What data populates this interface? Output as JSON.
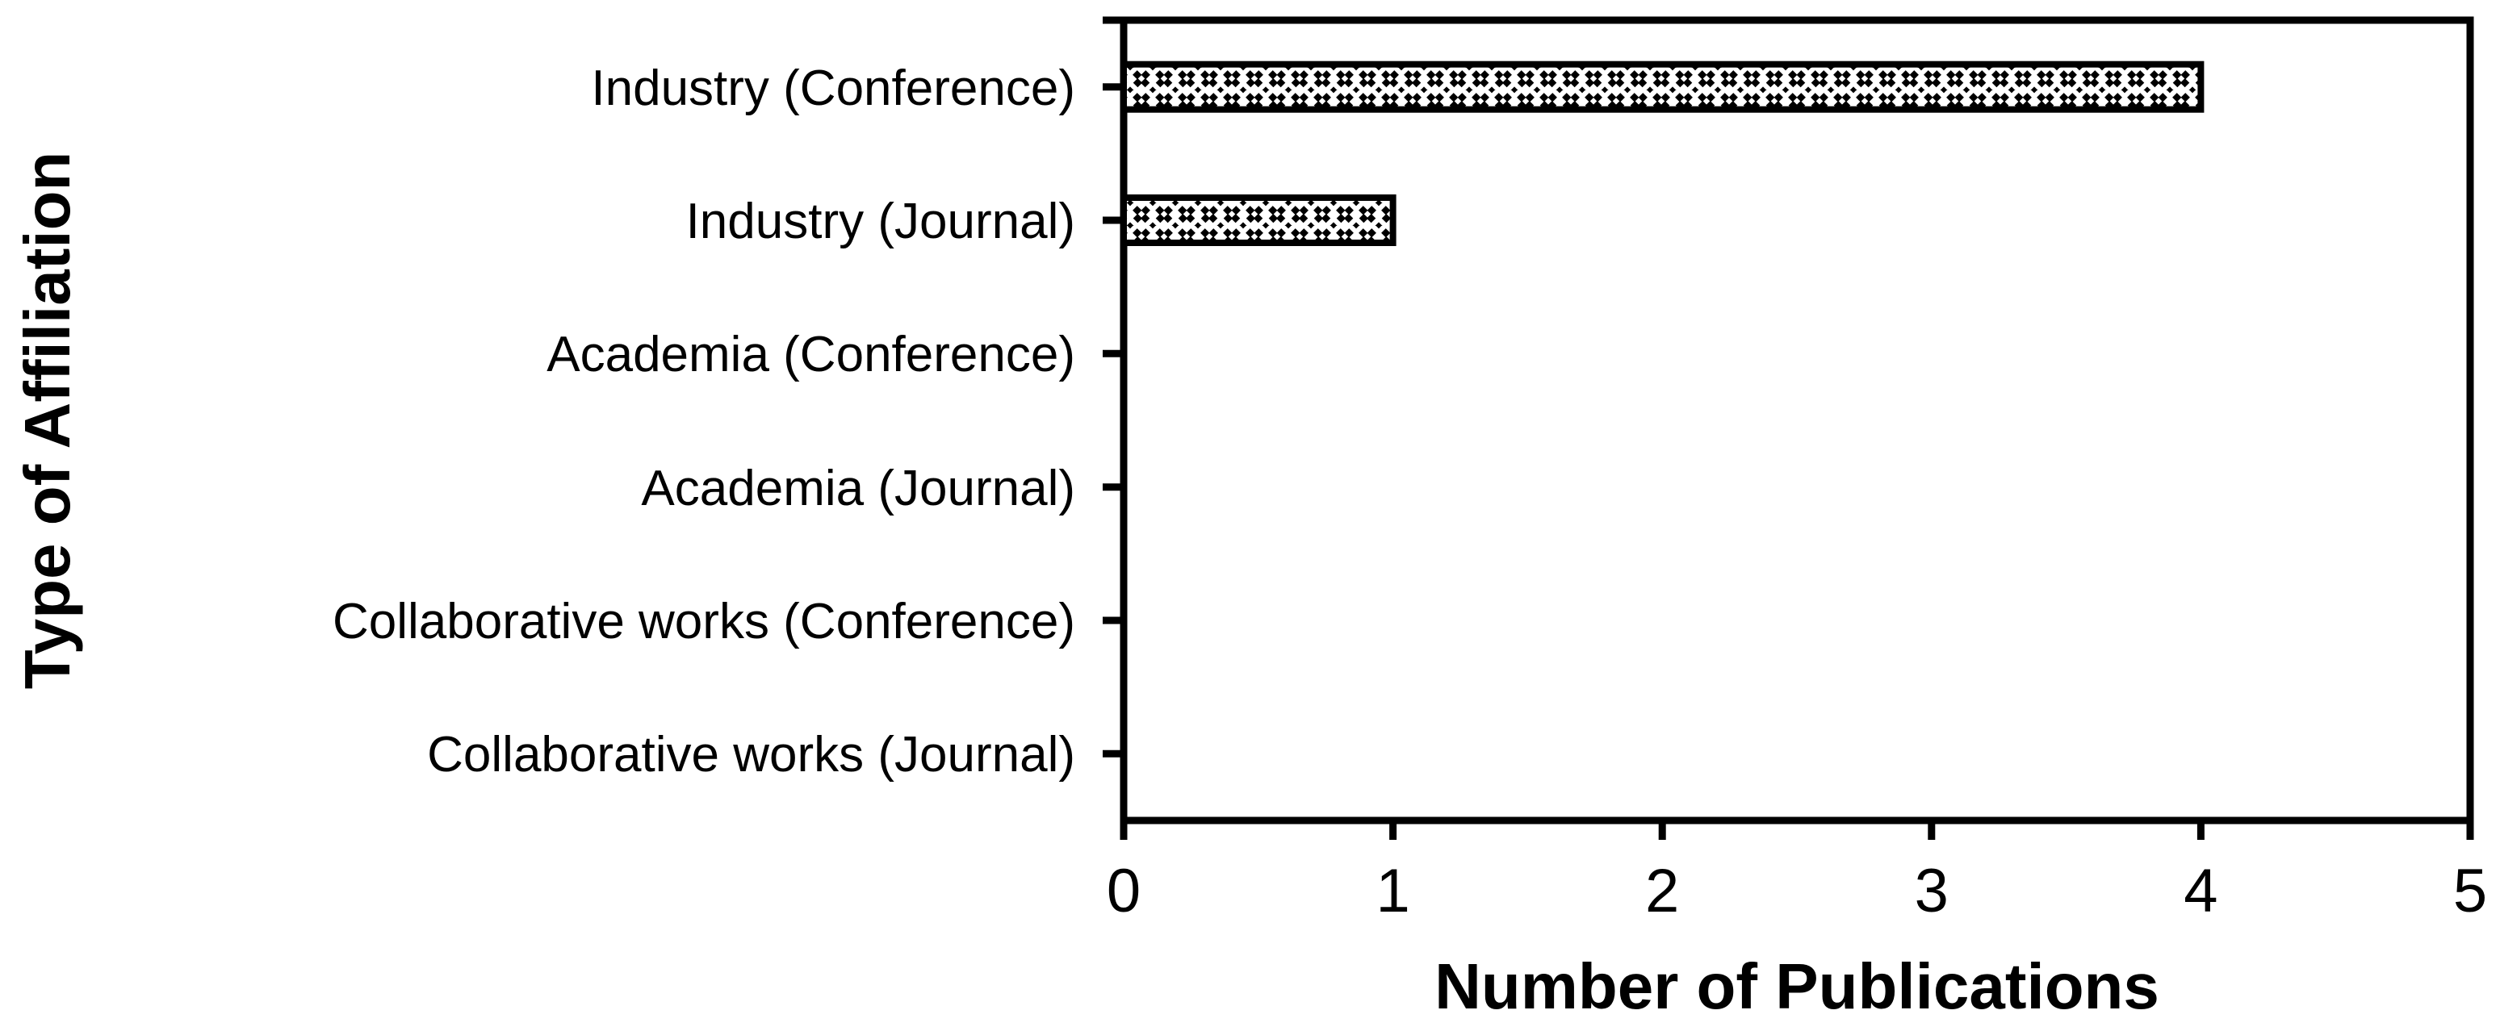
{
  "chart_data": {
    "type": "bar",
    "orientation": "horizontal",
    "categories": [
      "Industry (Conference)",
      "Industry (Journal)",
      "Academia (Conference)",
      "Academia (Journal)",
      "Collaborative works (Conference)",
      "Collaborative works (Journal)"
    ],
    "values": [
      4,
      1,
      0,
      0,
      0,
      0
    ],
    "xlabel": "Number of Publications",
    "ylabel": "Type of Affiliation",
    "xticks": [
      "0",
      "1",
      "2",
      "3",
      "4",
      "5"
    ],
    "xlim": [
      0,
      5
    ],
    "grid": false,
    "legend": false,
    "bar_style": {
      "fill_pattern": "black-white-weave-crosshatch",
      "border_color": "#000000",
      "background": "#ffffff"
    }
  }
}
